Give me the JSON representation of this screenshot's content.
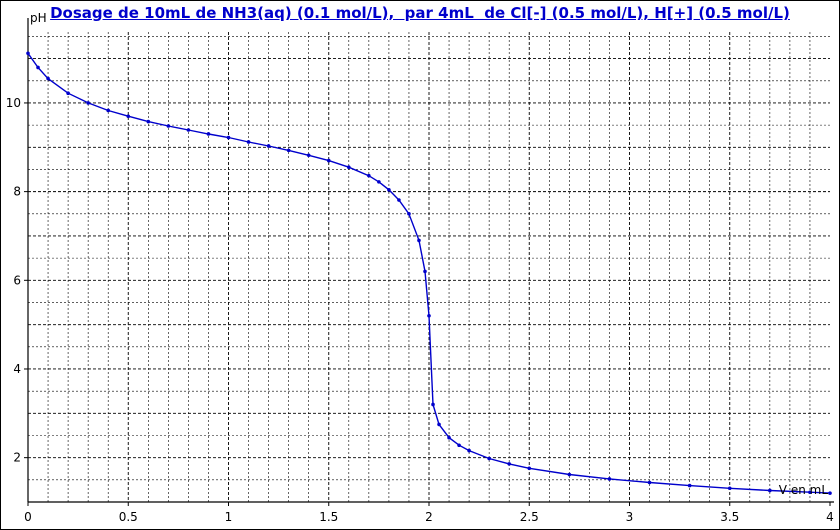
{
  "title": "Dosage de 10mL de NH3(aq) (0.1 mol/L),  par 4mL  de Cl[-] (0.5 mol/L), H[+] (0.5 mol/L)",
  "chart_data": {
    "type": "line",
    "title": "Dosage de 10mL de NH3(aq) (0.1 mol/L),  par 4mL  de Cl[-] (0.5 mol/L), H[+] (0.5 mol/L)",
    "xlabel": "V en mL",
    "ylabel": "pH",
    "xlim": [
      0,
      4
    ],
    "ylim": [
      1,
      11.6
    ],
    "x_ticks": [
      "0",
      "0.5",
      "1",
      "1.5",
      "2",
      "2.5",
      "3",
      "3.5",
      "4"
    ],
    "y_ticks": [
      "2",
      "4",
      "6",
      "8",
      "10"
    ],
    "grid": true,
    "line_color": "#0000cc",
    "series": [
      {
        "x": [
          0,
          0.05,
          0.1,
          0.2,
          0.3,
          0.4,
          0.5,
          0.6,
          0.7,
          0.8,
          0.9,
          1.0,
          1.1,
          1.2,
          1.3,
          1.4,
          1.5,
          1.6,
          1.7,
          1.75,
          1.8,
          1.85,
          1.9,
          1.95,
          1.98,
          2.0,
          2.02,
          2.05,
          2.1,
          2.15,
          2.2,
          2.3,
          2.4,
          2.5,
          2.7,
          2.9,
          3.1,
          3.3,
          3.5,
          3.7,
          3.9,
          4.0
        ],
        "y": [
          11.12,
          10.8,
          10.55,
          10.22,
          10.0,
          9.83,
          9.7,
          9.58,
          9.48,
          9.39,
          9.3,
          9.22,
          9.12,
          9.03,
          8.93,
          8.82,
          8.7,
          8.55,
          8.36,
          8.22,
          8.04,
          7.81,
          7.5,
          6.9,
          6.2,
          5.2,
          3.2,
          2.75,
          2.45,
          2.28,
          2.16,
          1.98,
          1.86,
          1.76,
          1.62,
          1.52,
          1.44,
          1.37,
          1.31,
          1.26,
          1.22,
          1.2
        ]
      }
    ]
  }
}
